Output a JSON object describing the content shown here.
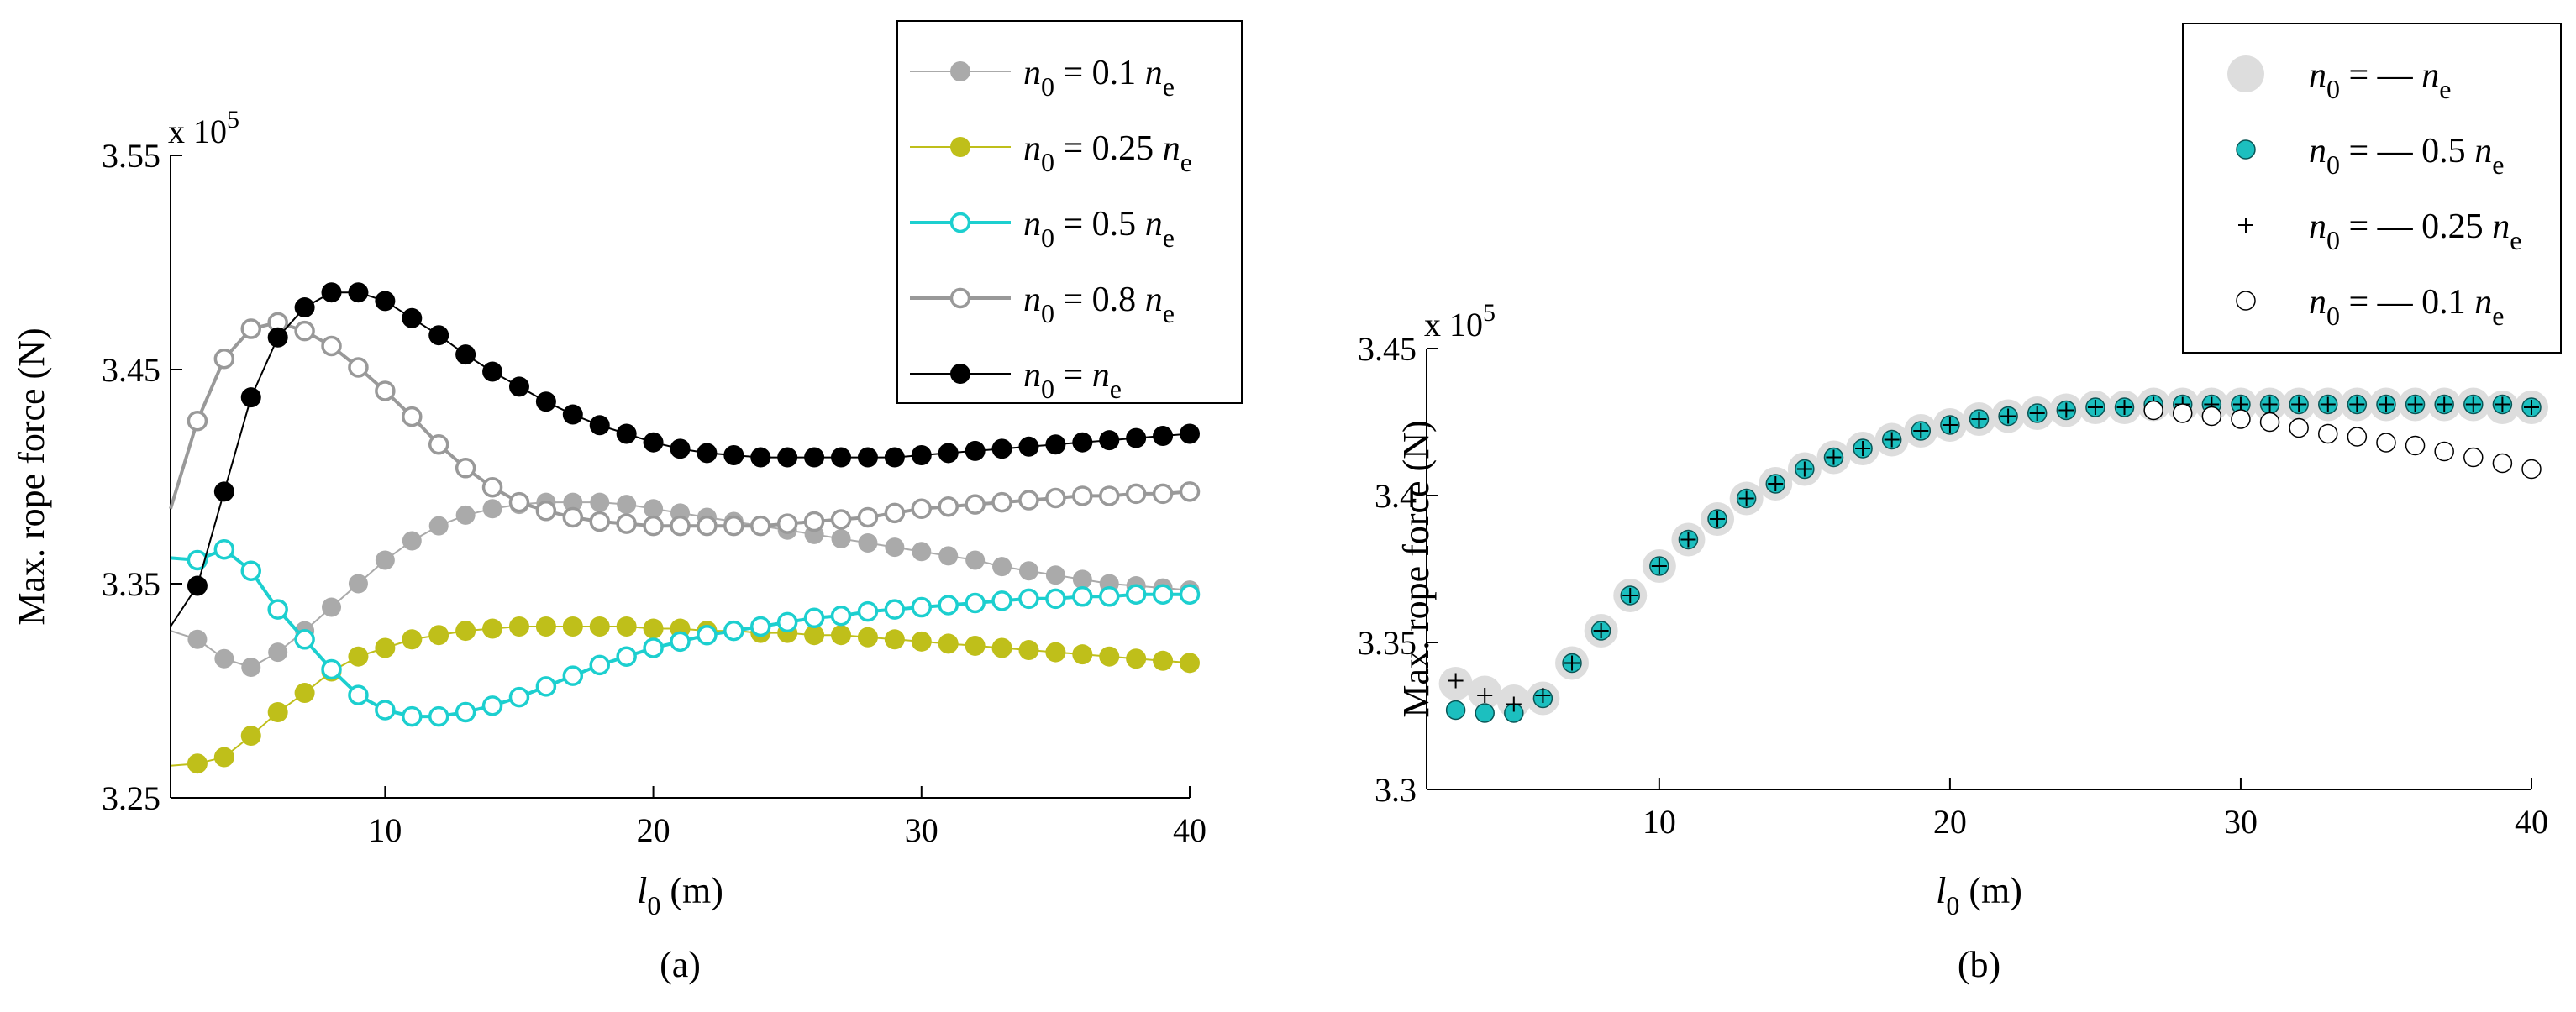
{
  "figure": {
    "panels": [
      {
        "id": "a",
        "caption": "(a)",
        "chart_data": {
          "type": "line",
          "title": "",
          "xlabel": {
            "main": "l",
            "sub": "0",
            "unit": " (m)"
          },
          "ylabel": "Max. rope force (N)",
          "exponent": {
            "base": "x 10",
            "power": "5"
          },
          "xlim": [
            2,
            40
          ],
          "ylim": [
            3.25,
            3.55
          ],
          "xticks": [
            10,
            20,
            30,
            40
          ],
          "xtick_labels": [
            "10",
            "20",
            "30",
            "40"
          ],
          "yticks": [
            3.25,
            3.35,
            3.45,
            3.55
          ],
          "ytick_labels": [
            "3.25",
            "3.35",
            "3.45",
            "3.55"
          ],
          "grid": false,
          "legend_position": "top-right",
          "series": [
            {
              "name": "n0 = 0.1ne",
              "label": {
                "pre": "n",
                "sub": "0",
                "mid": "= 0.1",
                "var": "n",
                "vsub": "e"
              },
              "color": "#aaaaaa",
              "marker": "filled",
              "line": true,
              "linewidth": 2,
              "x": [
                2,
                3,
                4,
                5,
                6,
                7,
                8,
                9,
                10,
                11,
                12,
                13,
                14,
                15,
                16,
                17,
                18,
                19,
                20,
                21,
                22,
                23,
                24,
                25,
                26,
                27,
                28,
                29,
                30,
                31,
                32,
                33,
                34,
                35,
                36,
                37,
                38,
                39,
                40
              ],
              "values": [
                3.328,
                3.324,
                3.315,
                3.311,
                3.318,
                3.328,
                3.339,
                3.35,
                3.361,
                3.37,
                3.377,
                3.382,
                3.385,
                3.387,
                3.388,
                3.388,
                3.388,
                3.387,
                3.385,
                3.383,
                3.381,
                3.379,
                3.377,
                3.375,
                3.373,
                3.371,
                3.369,
                3.367,
                3.365,
                3.363,
                3.361,
                3.358,
                3.356,
                3.354,
                3.352,
                3.35,
                3.349,
                3.348,
                3.347
              ]
            },
            {
              "name": "n0 = 0.25ne",
              "label": {
                "pre": "n",
                "sub": "0",
                "mid": "= 0.25",
                "var": "n",
                "vsub": "e"
              },
              "color": "#bfbf1a",
              "marker": "filled",
              "line": true,
              "linewidth": 2,
              "x": [
                2,
                3,
                4,
                5,
                6,
                7,
                8,
                9,
                10,
                11,
                12,
                13,
                14,
                15,
                16,
                17,
                18,
                19,
                20,
                21,
                22,
                23,
                24,
                25,
                26,
                27,
                28,
                29,
                30,
                31,
                32,
                33,
                34,
                35,
                36,
                37,
                38,
                39,
                40
              ],
              "values": [
                3.265,
                3.266,
                3.269,
                3.279,
                3.29,
                3.299,
                3.309,
                3.316,
                3.32,
                3.324,
                3.326,
                3.328,
                3.329,
                3.33,
                3.33,
                3.33,
                3.33,
                3.33,
                3.329,
                3.329,
                3.328,
                3.328,
                3.327,
                3.327,
                3.326,
                3.326,
                3.325,
                3.324,
                3.323,
                3.322,
                3.321,
                3.32,
                3.319,
                3.318,
                3.317,
                3.316,
                3.315,
                3.314,
                3.313
              ]
            },
            {
              "name": "n0 = 0.5ne",
              "label": {
                "pre": "n",
                "sub": "0",
                "mid": "= 0.5",
                "var": "n",
                "vsub": "e"
              },
              "color": "#1ccfcf",
              "marker": "open",
              "line": true,
              "linewidth": 4,
              "x": [
                2,
                3,
                4,
                5,
                6,
                7,
                8,
                9,
                10,
                11,
                12,
                13,
                14,
                15,
                16,
                17,
                18,
                19,
                20,
                21,
                22,
                23,
                24,
                25,
                26,
                27,
                28,
                29,
                30,
                31,
                32,
                33,
                34,
                35,
                36,
                37,
                38,
                39,
                40
              ],
              "values": [
                3.362,
                3.361,
                3.366,
                3.356,
                3.338,
                3.324,
                3.31,
                3.298,
                3.291,
                3.288,
                3.288,
                3.29,
                3.293,
                3.297,
                3.302,
                3.307,
                3.312,
                3.316,
                3.32,
                3.323,
                3.326,
                3.328,
                3.33,
                3.332,
                3.334,
                3.335,
                3.337,
                3.338,
                3.339,
                3.34,
                3.341,
                3.342,
                3.343,
                3.343,
                3.344,
                3.344,
                3.345,
                3.345,
                3.345
              ]
            },
            {
              "name": "n0 = 0.8ne",
              "label": {
                "pre": "n",
                "sub": "0",
                "mid": "= 0.8",
                "var": "n",
                "vsub": "e"
              },
              "color": "#999999",
              "marker": "open",
              "line": true,
              "linewidth": 4,
              "x": [
                2,
                3,
                4,
                5,
                6,
                7,
                8,
                9,
                10,
                11,
                12,
                13,
                14,
                15,
                16,
                17,
                18,
                19,
                20,
                21,
                22,
                23,
                24,
                25,
                26,
                27,
                28,
                29,
                30,
                31,
                32,
                33,
                34,
                35,
                36,
                37,
                38,
                39,
                40
              ],
              "values": [
                3.385,
                3.426,
                3.455,
                3.469,
                3.472,
                3.468,
                3.461,
                3.451,
                3.44,
                3.428,
                3.415,
                3.404,
                3.395,
                3.388,
                3.384,
                3.381,
                3.379,
                3.378,
                3.377,
                3.377,
                3.377,
                3.377,
                3.377,
                3.378,
                3.379,
                3.38,
                3.381,
                3.383,
                3.385,
                3.386,
                3.387,
                3.388,
                3.389,
                3.39,
                3.391,
                3.391,
                3.392,
                3.392,
                3.393
              ]
            },
            {
              "name": "n0 = ne",
              "label": {
                "pre": "n",
                "sub": "0",
                "mid": "=",
                "var": "n",
                "vsub": "e"
              },
              "color": "#000000",
              "marker": "filled",
              "line": true,
              "linewidth": 2,
              "x": [
                2,
                3,
                4,
                5,
                6,
                7,
                8,
                9,
                10,
                11,
                12,
                13,
                14,
                15,
                16,
                17,
                18,
                19,
                20,
                21,
                22,
                23,
                24,
                25,
                26,
                27,
                28,
                29,
                30,
                31,
                32,
                33,
                34,
                35,
                36,
                37,
                38,
                39,
                40
              ],
              "values": [
                3.33,
                3.349,
                3.393,
                3.437,
                3.465,
                3.479,
                3.486,
                3.486,
                3.482,
                3.474,
                3.466,
                3.457,
                3.449,
                3.442,
                3.435,
                3.429,
                3.424,
                3.42,
                3.416,
                3.413,
                3.411,
                3.41,
                3.409,
                3.409,
                3.409,
                3.409,
                3.409,
                3.409,
                3.41,
                3.411,
                3.412,
                3.413,
                3.414,
                3.415,
                3.416,
                3.417,
                3.418,
                3.419,
                3.42
              ]
            }
          ]
        }
      },
      {
        "id": "b",
        "caption": "(b)",
        "chart_data": {
          "type": "scatter",
          "title": "",
          "xlabel": {
            "main": "l",
            "sub": "0",
            "unit": " (m)"
          },
          "ylabel": "Max. rope force (N)",
          "exponent": {
            "base": "x 10",
            "power": "5"
          },
          "xlim": [
            2,
            40
          ],
          "ylim": [
            3.3,
            3.45
          ],
          "xticks": [
            10,
            20,
            30,
            40
          ],
          "xtick_labels": [
            "10",
            "20",
            "30",
            "40"
          ],
          "yticks": [
            3.3,
            3.35,
            3.4,
            3.45
          ],
          "ytick_labels": [
            "3.3",
            "3.35",
            "3.4",
            "3.45"
          ],
          "grid": false,
          "legend_position": "top-right",
          "series": [
            {
              "name": "n0 = -ne",
              "label": {
                "pre": "n",
                "sub": "0",
                "mid": "= —",
                "var": "n",
                "vsub": "e"
              },
              "color": "#dddddd",
              "marker": "big-filled",
              "line": false,
              "x": [
                3,
                4,
                5,
                6,
                7,
                8,
                9,
                10,
                11,
                12,
                13,
                14,
                15,
                16,
                17,
                18,
                19,
                20,
                21,
                22,
                23,
                24,
                25,
                26,
                27,
                28,
                29,
                30,
                31,
                32,
                33,
                34,
                35,
                36,
                37,
                38,
                39,
                40
              ],
              "values": [
                3.336,
                3.333,
                3.33,
                3.331,
                3.343,
                3.354,
                3.366,
                3.376,
                3.385,
                3.392,
                3.399,
                3.404,
                3.409,
                3.413,
                3.416,
                3.419,
                3.422,
                3.424,
                3.426,
                3.427,
                3.428,
                3.429,
                3.43,
                3.43,
                3.431,
                3.431,
                3.431,
                3.431,
                3.431,
                3.431,
                3.431,
                3.431,
                3.431,
                3.431,
                3.431,
                3.431,
                3.43,
                3.43
              ]
            },
            {
              "name": "n0 = -0.5ne",
              "label": {
                "pre": "n",
                "sub": "0",
                "mid": "= — 0.5",
                "var": "n",
                "vsub": "e"
              },
              "color": "#1cbfbf",
              "marker": "filled",
              "line": false,
              "x": [
                3,
                4,
                5,
                6,
                7,
                8,
                9,
                10,
                11,
                12,
                13,
                14,
                15,
                16,
                17,
                18,
                19,
                20,
                21,
                22,
                23,
                24,
                25,
                26,
                27,
                28,
                29,
                30,
                31,
                32,
                33,
                34,
                35,
                36,
                37,
                38,
                39,
                40
              ],
              "values": [
                3.327,
                3.326,
                3.326,
                3.331,
                3.343,
                3.354,
                3.366,
                3.376,
                3.385,
                3.392,
                3.399,
                3.404,
                3.409,
                3.413,
                3.416,
                3.419,
                3.422,
                3.424,
                3.426,
                3.427,
                3.428,
                3.429,
                3.43,
                3.43,
                3.431,
                3.431,
                3.431,
                3.431,
                3.431,
                3.431,
                3.431,
                3.431,
                3.431,
                3.431,
                3.431,
                3.431,
                3.431,
                3.43
              ]
            },
            {
              "name": "n0 = -0.25ne",
              "label": {
                "pre": "n",
                "sub": "0",
                "mid": "= — 0.25",
                "var": "n",
                "vsub": "e"
              },
              "color": "#000000",
              "marker": "plus",
              "line": false,
              "x": [
                3,
                4,
                5,
                6,
                7,
                8,
                9,
                10,
                11,
                12,
                13,
                14,
                15,
                16,
                17,
                18,
                19,
                20,
                21,
                22,
                23,
                24,
                25,
                26,
                27,
                28,
                29,
                30,
                31,
                32,
                33,
                34,
                35,
                36,
                37,
                38,
                39,
                40
              ],
              "values": [
                3.337,
                3.332,
                3.329,
                3.332,
                3.343,
                3.354,
                3.366,
                3.376,
                3.385,
                3.392,
                3.399,
                3.404,
                3.409,
                3.413,
                3.416,
                3.419,
                3.422,
                3.424,
                3.426,
                3.427,
                3.428,
                3.429,
                3.43,
                3.43,
                3.431,
                3.431,
                3.431,
                3.431,
                3.431,
                3.431,
                3.431,
                3.431,
                3.431,
                3.431,
                3.431,
                3.431,
                3.431,
                3.43
              ]
            },
            {
              "name": "n0 = -0.1ne",
              "label": {
                "pre": "n",
                "sub": "0",
                "mid": "= — 0.1",
                "var": "n",
                "vsub": "e"
              },
              "color": "#000000",
              "marker": "open-circle",
              "line": false,
              "x": [
                27,
                28,
                29,
                30,
                31,
                32,
                33,
                34,
                35,
                36,
                37,
                38,
                39,
                40
              ],
              "values": [
                3.429,
                3.428,
                3.427,
                3.426,
                3.425,
                3.423,
                3.421,
                3.42,
                3.418,
                3.417,
                3.415,
                3.413,
                3.411,
                3.409
              ]
            }
          ]
        }
      }
    ]
  }
}
